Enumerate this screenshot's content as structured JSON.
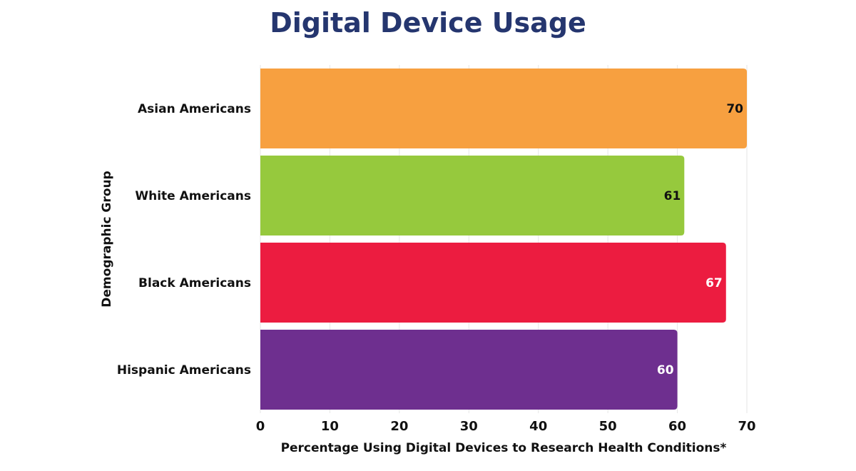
{
  "chart_data": {
    "type": "bar",
    "orientation": "horizontal",
    "title": "Digital Device Usage",
    "xlabel": "Percentage Using Digital Devices to Research Health Conditions*",
    "ylabel": "Demographic Group",
    "categories": [
      "Asian Americans",
      "White Americans",
      "Black Americans",
      "Hispanic Americans"
    ],
    "values": [
      70,
      61,
      67,
      60
    ],
    "colors": [
      "#f7a040",
      "#96c93d",
      "#ec1c40",
      "#6e2f8f"
    ],
    "label_colors": [
      "#111111",
      "#111111",
      "#ffffff",
      "#ffffff"
    ],
    "xlim": [
      0,
      70
    ],
    "xticks": [
      0,
      10,
      20,
      30,
      40,
      50,
      60,
      70
    ],
    "grid": "vertical",
    "legend": "none"
  }
}
